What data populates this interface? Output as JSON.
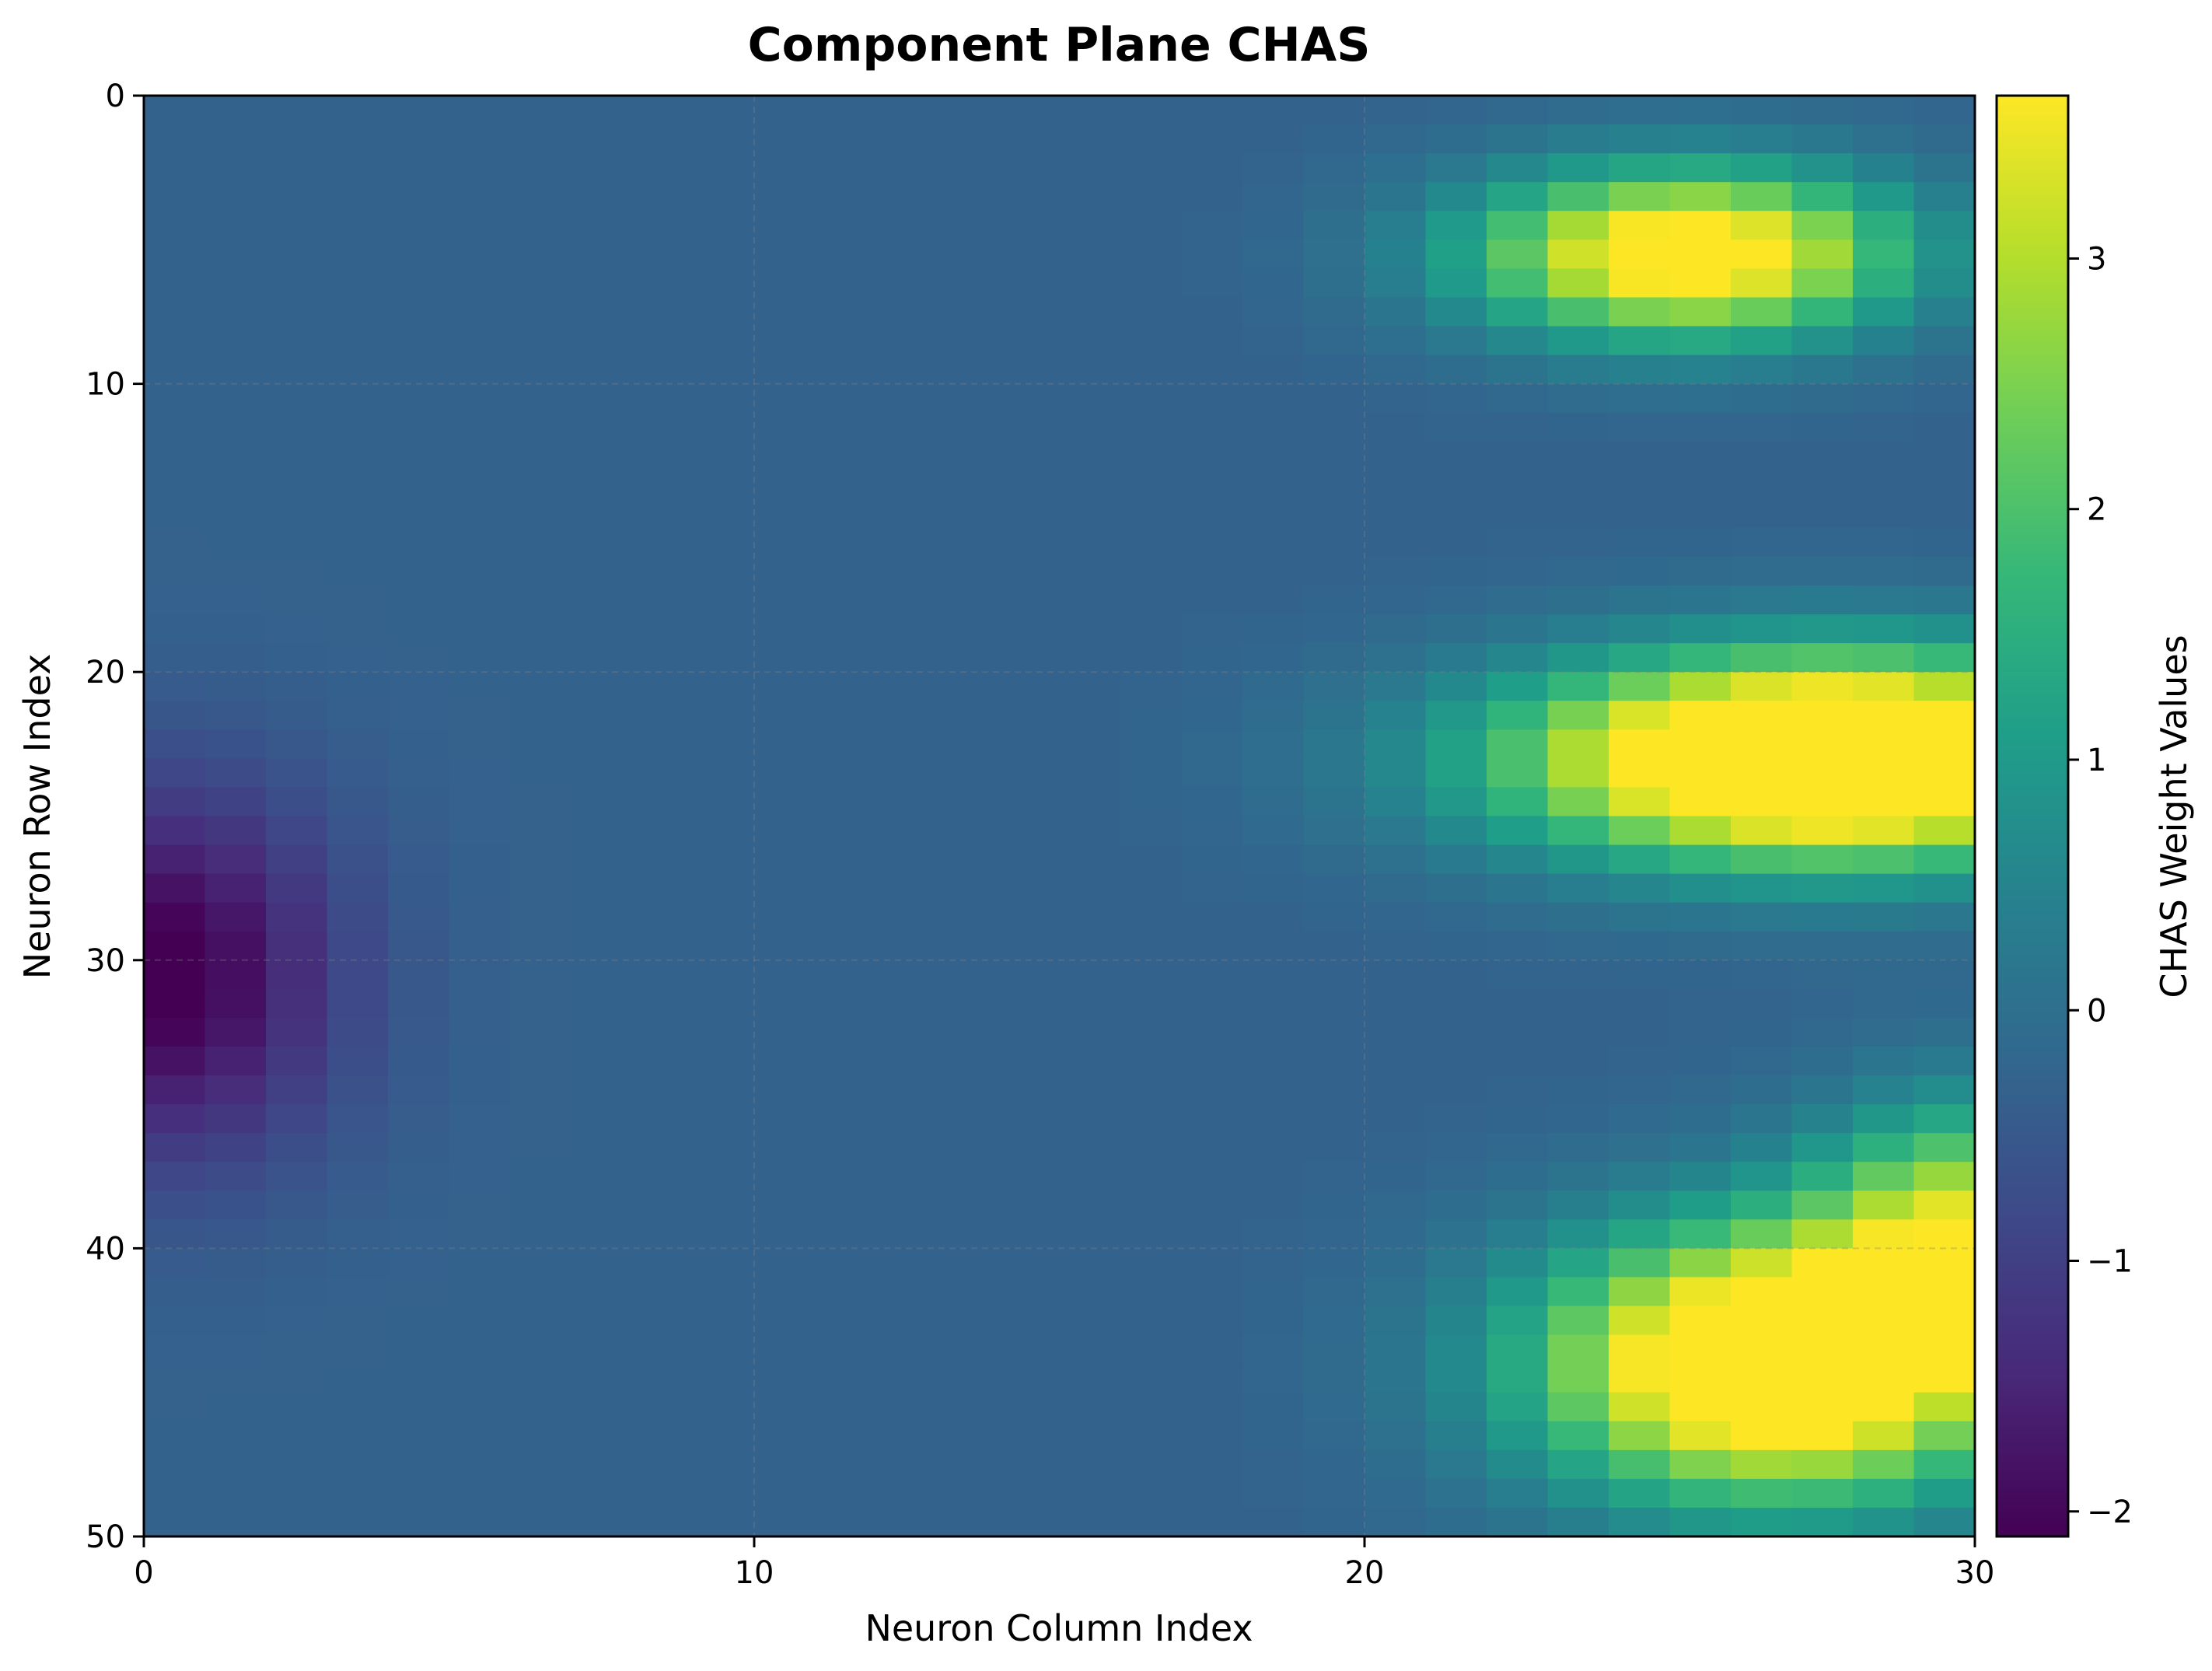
{
  "chart_data": {
    "type": "heatmap",
    "title": "Component Plane CHAS",
    "xlabel": "Neuron Column Index",
    "ylabel": "Neuron Row Index",
    "colorbar_label": "CHAS Weight Values",
    "colormap": "viridis",
    "colormap_stops": [
      "#440154",
      "#482878",
      "#3e4989",
      "#31688e",
      "#26828e",
      "#1f9e89",
      "#35b779",
      "#6ece58",
      "#b5de2b",
      "#fde725"
    ],
    "grid": true,
    "xlim": [
      0,
      30
    ],
    "ylim": [
      0,
      50
    ],
    "y_inverted": true,
    "vlim": [
      -2.1,
      3.65
    ],
    "xticks": [
      {
        "value": 0,
        "label": "0"
      },
      {
        "value": 10,
        "label": "10"
      },
      {
        "value": 20,
        "label": "20"
      },
      {
        "value": 30,
        "label": "30"
      }
    ],
    "yticks": [
      {
        "value": 0,
        "label": "0"
      },
      {
        "value": 10,
        "label": "10"
      },
      {
        "value": 20,
        "label": "20"
      },
      {
        "value": 30,
        "label": "30"
      },
      {
        "value": 40,
        "label": "40"
      },
      {
        "value": 50,
        "label": "50"
      }
    ],
    "colorbar_ticks": [
      {
        "value": -2,
        "label": "−2"
      },
      {
        "value": -1,
        "label": "−1"
      },
      {
        "value": 0,
        "label": "0"
      },
      {
        "value": 1,
        "label": "1"
      },
      {
        "value": 2,
        "label": "2"
      },
      {
        "value": 3,
        "label": "3"
      }
    ],
    "background_value": -0.3,
    "blobs": [
      {
        "type": "gauss",
        "cx": 0.3,
        "cy": 30.5,
        "sx": 2.0,
        "sy": 4.5,
        "amp": -1.9
      },
      {
        "type": "gauss",
        "cx": 25.3,
        "cy": 5.5,
        "sx": 2.5,
        "sy": 2.1,
        "amp": 4.6
      },
      {
        "type": "gauss",
        "cx": 27.6,
        "cy": 23.0,
        "sx": 3.6,
        "sy": 2.5,
        "amp": 6.3
      },
      {
        "type": "gauss",
        "cx": 26.8,
        "cy": 44.0,
        "sx": 2.8,
        "sy": 3.3,
        "amp": 5.5
      },
      {
        "type": "gauss",
        "cx": 30.0,
        "cy": 39.0,
        "sx": 1.8,
        "sy": 3.0,
        "amp": 3.0
      }
    ]
  }
}
